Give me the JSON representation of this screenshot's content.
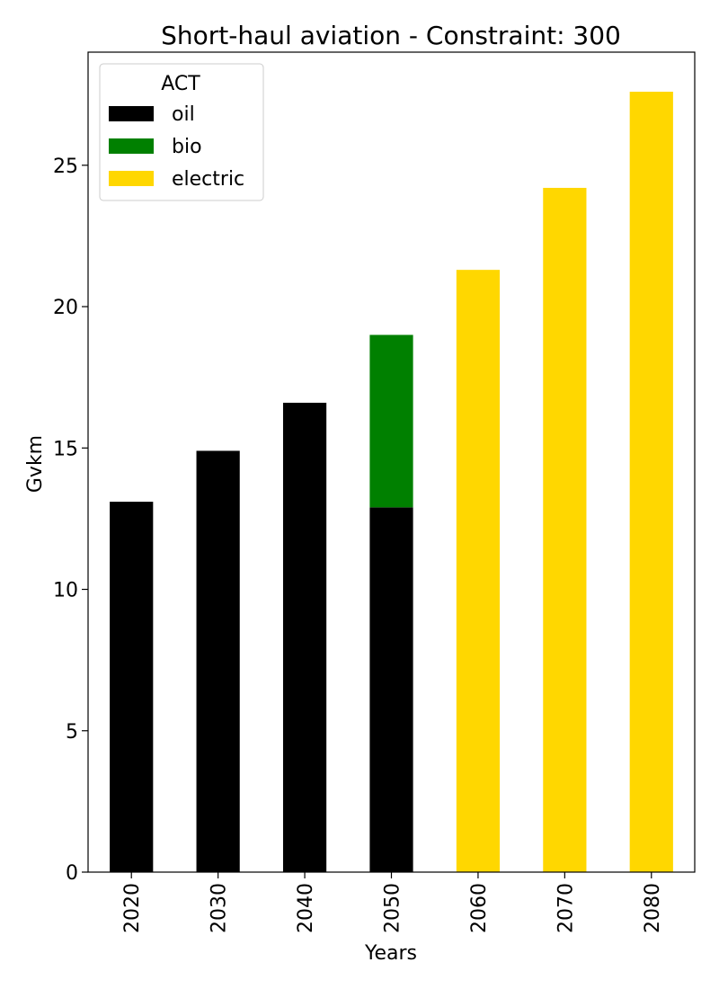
{
  "chart_data": {
    "type": "bar",
    "stacked": true,
    "title": "Short-haul aviation - Constraint: 300",
    "xlabel": "Years",
    "ylabel": "Gvkm",
    "categories": [
      "2020",
      "2030",
      "2040",
      "2050",
      "2060",
      "2070",
      "2080"
    ],
    "ylim": [
      0,
      29
    ],
    "yticks": [
      0,
      5,
      10,
      15,
      20,
      25
    ],
    "grid": false,
    "legend": {
      "title": "ACT",
      "placement": "top-left"
    },
    "series": [
      {
        "name": "oil",
        "color": "#000000",
        "values": [
          13.1,
          14.9,
          16.6,
          12.9,
          0,
          0,
          0
        ]
      },
      {
        "name": "bio",
        "color": "#008000",
        "values": [
          0,
          0,
          0,
          6.1,
          0,
          0,
          0
        ]
      },
      {
        "name": "electric",
        "color": "#FFD700",
        "values": [
          0,
          0,
          0,
          0,
          21.3,
          24.2,
          27.6
        ]
      }
    ]
  }
}
